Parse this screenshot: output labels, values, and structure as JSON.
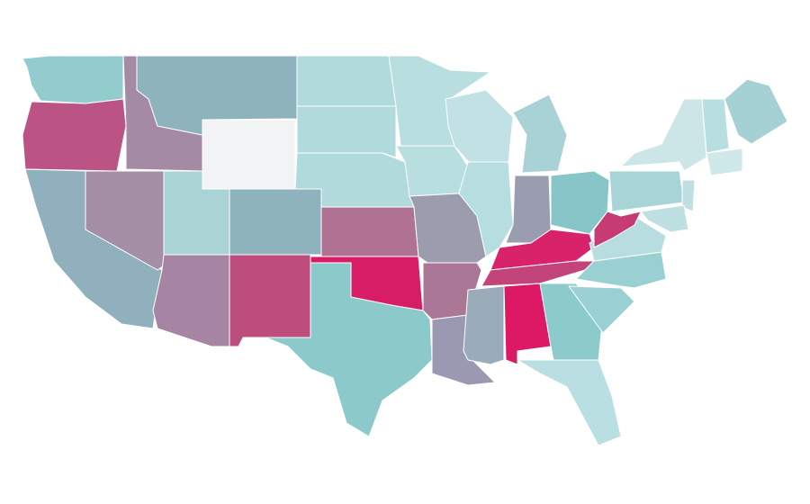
{
  "map": {
    "regions": [
      {
        "color": "#93cccd"
      },
      {
        "color": "#bb5384"
      },
      {
        "color": "#8fb0bc"
      },
      {
        "color": "#a58fa6"
      },
      {
        "color": "#a48aa5"
      },
      {
        "color": "#8fb3bc"
      },
      {
        "color": "#f2f3f4"
      },
      {
        "color": "#aad3d5"
      },
      {
        "color": "#8fb3bc"
      },
      {
        "color": "#a684a3"
      },
      {
        "color": "#bc4d7d"
      },
      {
        "color": "#b1dadd"
      },
      {
        "color": "#b1dadd"
      },
      {
        "color": "#b1dadd"
      },
      {
        "color": "#b07292"
      },
      {
        "color": "#d61d66"
      },
      {
        "color": "#8cc9cb"
      },
      {
        "color": "#b8dee0"
      },
      {
        "color": "#b8dee0"
      },
      {
        "color": "#9b9cae"
      },
      {
        "color": "#ab7797"
      },
      {
        "color": "#9a99b1"
      },
      {
        "color": "#c1e1e4"
      },
      {
        "color": "#b6dde0"
      },
      {
        "color": "#a8d2d6"
      },
      {
        "color": "#9a9db0"
      },
      {
        "color": "#87c5c9"
      },
      {
        "color": "#d8226a"
      },
      {
        "color": "#c3447b"
      },
      {
        "color": "#9aacba"
      },
      {
        "color": "#dd1865"
      },
      {
        "color": "#8ccacc"
      },
      {
        "color": "#b9dfe2"
      },
      {
        "color": "#9bd0d3"
      },
      {
        "color": "#9bd0d3"
      },
      {
        "color": "#b8dde0"
      },
      {
        "color": "#c63b74"
      },
      {
        "color": "#a7d4d7"
      },
      {
        "color": "#cce6e8"
      },
      {
        "color": "#a5d1d5"
      },
      {
        "color": "#b8dfe0"
      },
      {
        "color": "#cfe8ea"
      },
      {
        "color": "#bfe0e2"
      },
      {
        "color": "#bfe0e2"
      }
    ]
  }
}
